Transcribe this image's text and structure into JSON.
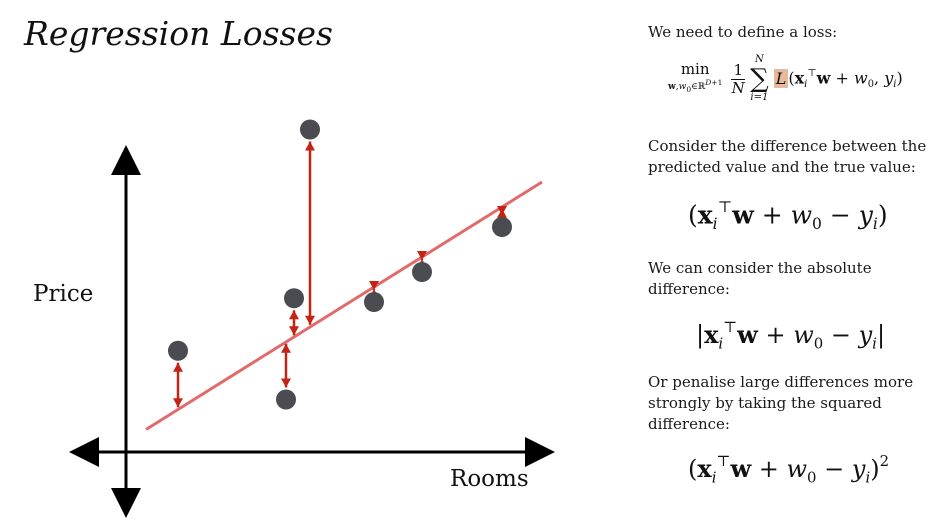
{
  "slide": {
    "title": "Regression Losses"
  },
  "plot": {
    "y_label": "Price",
    "x_label": "Rooms",
    "fit_line": {
      "from": [
        0.25,
        0.3
      ],
      "to": [
        5.2,
        3.6
      ]
    },
    "points": [
      {
        "x": 0.65,
        "y": 1.35,
        "fit": 0.57
      },
      {
        "x": 2.0,
        "y": 0.7,
        "fit": 1.47
      },
      {
        "x": 2.1,
        "y": 2.05,
        "fit": 1.53
      },
      {
        "x": 2.3,
        "y": 4.3,
        "fit": 1.67
      },
      {
        "x": 3.1,
        "y": 2.0,
        "fit": 2.2
      },
      {
        "x": 3.7,
        "y": 2.4,
        "fit": 2.6
      },
      {
        "x": 4.7,
        "y": 3.0,
        "fit": 3.27
      }
    ],
    "colors": {
      "line": "#e26a6a",
      "arrow": "#c42414",
      "point": "#4b4b52",
      "axis": "#000000"
    }
  },
  "panel": {
    "p1": "We need to define a loss:",
    "p2": "Consider the difference between the predicted value and the true value:",
    "p3": "We can consider the absolute difference:",
    "p4": "Or penalise large differences more strongly by taking the squared difference:",
    "highlight_color": "#e7b99c"
  }
}
